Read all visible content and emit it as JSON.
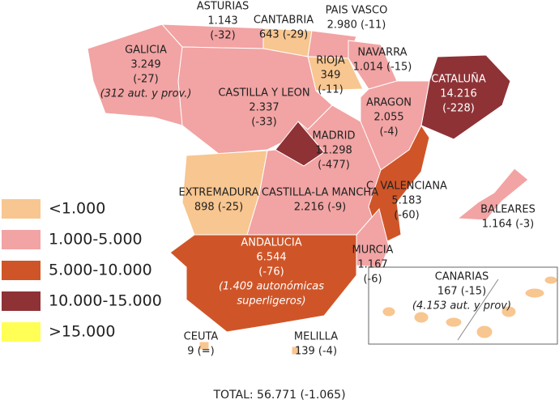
{
  "regions": [
    {
      "lines": [
        "GALICIA",
        "3.249",
        "(-27)"
      ],
      "note": [
        "(312 aut. y prov.)"
      ],
      "category": 1
    },
    {
      "lines": [
        "ASTURIAS",
        "1.143",
        "(-32)"
      ],
      "category": 1
    },
    {
      "lines": [
        "CANTABRIA",
        "643 (-29)"
      ],
      "category": 0
    },
    {
      "lines": [
        "PAIS VASCO",
        "2.980 (-11)"
      ],
      "category": 1
    },
    {
      "lines": [
        "NAVARRA",
        "1.014 (-15)"
      ],
      "category": 1
    },
    {
      "lines": [
        "RIOJA",
        "349",
        "(-11)"
      ],
      "category": 0
    },
    {
      "lines": [
        "CATALUÑA",
        "14.216",
        "(-228)"
      ],
      "category": 3
    },
    {
      "lines": [
        "CASTILLA Y LEON",
        "2.337",
        "(-33)"
      ],
      "category": 1
    },
    {
      "lines": [
        "ARAGON",
        "2.055",
        "(-4)"
      ],
      "category": 1
    },
    {
      "lines": [
        "MADRID",
        "11.298",
        "(-477)"
      ],
      "category": 3
    },
    {
      "lines": [
        "EXTREMADURA",
        "898 (-25)"
      ],
      "category": 0
    },
    {
      "lines": [
        "CASTILLA-LA MANCHA",
        "2.216 (-9)"
      ],
      "category": 1
    },
    {
      "lines": [
        "C. VALENCIANA",
        "5.183",
        "(-60)"
      ],
      "category": 2
    },
    {
      "lines": [
        "BALEARES",
        "1.164 (-3)"
      ],
      "category": 1
    },
    {
      "lines": [
        "ANDALUCIA",
        "6.544",
        "(-76)"
      ],
      "note": [
        "(1.409 autonómicas",
        "superligeros)"
      ],
      "category": 2
    },
    {
      "lines": [
        "MURCIA",
        "1.167",
        "(-6)"
      ],
      "category": 1
    },
    {
      "lines": [
        "CANARIAS",
        "167 (-15)"
      ],
      "note": [
        "(4.153 aut. y prov)"
      ],
      "category": 0
    },
    {
      "lines": [
        "CEUTA",
        "9 (=)"
      ],
      "category": 0
    },
    {
      "lines": [
        "MELILLA",
        "139 (-4)"
      ],
      "category": 0
    }
  ],
  "legend": [
    {
      "label": "<1.000",
      "color": "#f8c690"
    },
    {
      "label": "1.000-5.000",
      "color": "#f2a3a3"
    },
    {
      "label": "5.000-10.000",
      "color": "#cf5528"
    },
    {
      "label": "10.000-15.000",
      "color": "#8e3236"
    },
    {
      "label": ">15.000",
      "color": "#ffff55"
    }
  ],
  "total": "TOTAL: 56.771 (-1.065)"
}
